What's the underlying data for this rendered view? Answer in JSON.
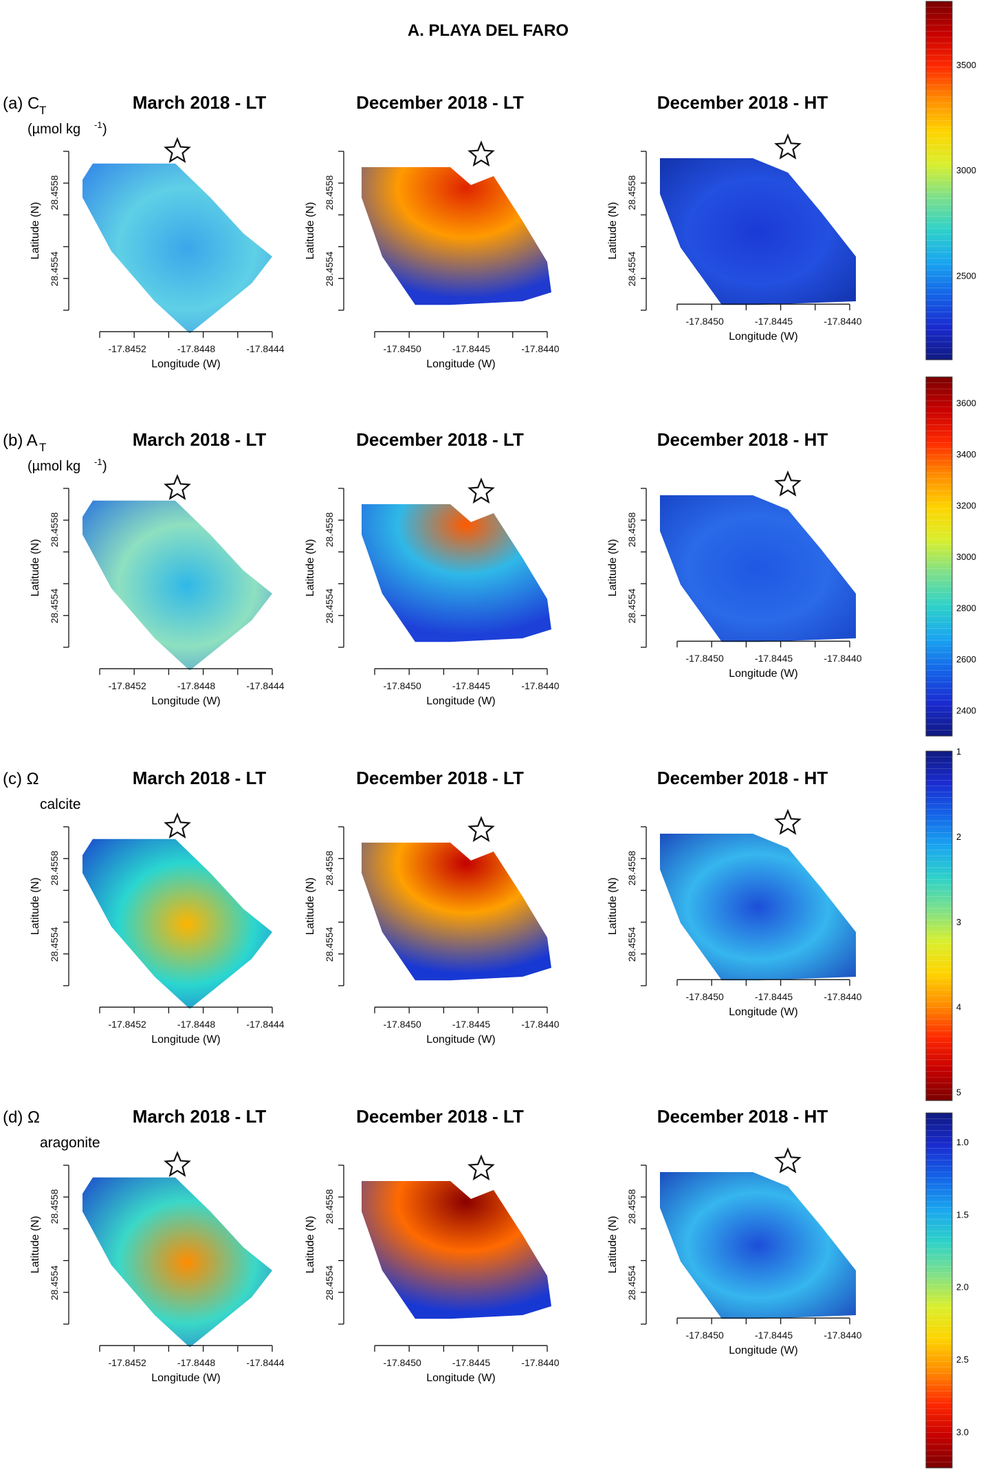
{
  "figure_title": "A. PLAYA DEL FARO",
  "row_labels": [
    {
      "prefix": "(a) C",
      "sub": "T",
      "unit": "(µmol kg",
      "unit_sup": "-1",
      "unit_end": ")"
    },
    {
      "prefix": "(b) A",
      "sub": "T",
      "unit": "(µmol kg",
      "unit_sup": "-1",
      "unit_end": ")"
    },
    {
      "prefix": "(c) Ω",
      "sub2": "calcite"
    },
    {
      "prefix": "(d) Ω",
      "sub2": "aragonite"
    }
  ],
  "chart_data": [
    {
      "type": "heatmap",
      "row": "a",
      "colorbar": {
        "ticks": [
          2500,
          3000,
          3500
        ],
        "range": [
          2100,
          3800
        ],
        "palette": "jet",
        "reversed": false
      },
      "panels": [
        {
          "title": "March 2018 - LT",
          "xlabel": "Longitude (W)",
          "ylabel": "Latitude (N)",
          "xticks": [
            "-17.8452",
            "-17.8448",
            "-17.8444"
          ],
          "yticks": [
            "28.4558",
            "28.4554"
          ],
          "field": {
            "description": "light blue/cyan, low values",
            "level_mean": 2700
          }
        },
        {
          "title": "December 2018 - LT",
          "xlabel": "Longitude (W)",
          "ylabel": "Latitude (N)",
          "xticks": [
            "-17.8450",
            "-17.8445",
            "-17.8440"
          ],
          "yticks": [
            "28.4558",
            "28.4554"
          ],
          "field": {
            "description": "red near shore, blue offshore",
            "level_high": 3700,
            "level_low": 2300
          }
        },
        {
          "title": "December 2018 - HT",
          "xlabel": "Longitude (W)",
          "ylabel": "Latitude (N)",
          "xticks": [
            "-17.8450",
            "-17.8445",
            "-17.8440"
          ],
          "yticks": [
            "28.4558",
            "28.4554"
          ],
          "field": {
            "description": "dark blue, uniform",
            "level_mean": 2300
          }
        }
      ]
    },
    {
      "type": "heatmap",
      "row": "b",
      "colorbar": {
        "ticks": [
          2400,
          2600,
          2800,
          3000,
          3200,
          3400,
          3600
        ],
        "range": [
          2300,
          3700
        ],
        "palette": "jet",
        "reversed": false
      },
      "panels": [
        {
          "title": "March 2018 - LT",
          "xlabel": "Longitude (W)",
          "ylabel": "Latitude (N)",
          "xticks": [
            "-17.8452",
            "-17.8448",
            "-17.8444"
          ],
          "yticks": [
            "28.4558",
            "28.4554"
          ]
        },
        {
          "title": "December 2018 - LT",
          "xlabel": "Longitude (W)",
          "ylabel": "Latitude (N)",
          "xticks": [
            "-17.8450",
            "-17.8445",
            "-17.8440"
          ],
          "yticks": [
            "28.4558",
            "28.4554"
          ]
        },
        {
          "title": "December 2018 - HT",
          "xlabel": "Longitude (W)",
          "ylabel": "Latitude (N)",
          "xticks": [
            "-17.8450",
            "-17.8445",
            "-17.8440"
          ],
          "yticks": [
            "28.4558",
            "28.4554"
          ]
        }
      ]
    },
    {
      "type": "heatmap",
      "row": "c",
      "colorbar": {
        "ticks": [
          1,
          2,
          3,
          4,
          5
        ],
        "range": [
          1,
          5.1
        ],
        "palette": "jet",
        "reversed": true
      },
      "panels": [
        {
          "title": "March 2018 - LT",
          "xlabel": "Longitude (W)",
          "ylabel": "Latitude (N)",
          "xticks": [
            "-17.8452",
            "-17.8448",
            "-17.8444"
          ],
          "yticks": [
            "28.4558",
            "28.4554"
          ]
        },
        {
          "title": "December 2018 - LT",
          "xlabel": "Longitude (W)",
          "ylabel": "Latitude (N)",
          "xticks": [
            "-17.8450",
            "-17.8445",
            "-17.8440"
          ],
          "yticks": [
            "28.4558",
            "28.4554"
          ]
        },
        {
          "title": "December 2018 - HT",
          "xlabel": "Longitude (W)",
          "ylabel": "Latitude (N)",
          "xticks": [
            "-17.8450",
            "-17.8445",
            "-17.8440"
          ],
          "yticks": [
            "28.4558",
            "28.4554"
          ]
        }
      ]
    },
    {
      "type": "heatmap",
      "row": "d",
      "colorbar": {
        "ticks": [
          1.0,
          1.5,
          2.0,
          2.5,
          3.0
        ],
        "tick_labels": [
          "1.0",
          "1.5",
          "2.0",
          "2.5",
          "3.0"
        ],
        "range": [
          0.8,
          3.25
        ],
        "palette": "jet",
        "reversed": true
      },
      "panels": [
        {
          "title": "March 2018 - LT",
          "xlabel": "Longitude (W)",
          "ylabel": "Latitude (N)",
          "xticks": [
            "-17.8452",
            "-17.8448",
            "-17.8444"
          ],
          "yticks": [
            "28.4558",
            "28.4554"
          ]
        },
        {
          "title": "December 2018 - LT",
          "xlabel": "Longitude (W)",
          "ylabel": "Latitude (N)",
          "xticks": [
            "-17.8450",
            "-17.8445",
            "-17.8440"
          ],
          "yticks": [
            "28.4558",
            "28.4554"
          ]
        },
        {
          "title": "December 2018 - HT",
          "xlabel": "Longitude (W)",
          "ylabel": "Latitude (N)",
          "xticks": [
            "-17.8450",
            "-17.8445",
            "-17.8440"
          ],
          "yticks": [
            "28.4558",
            "28.4554"
          ]
        }
      ]
    }
  ]
}
